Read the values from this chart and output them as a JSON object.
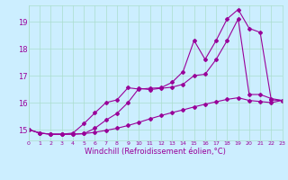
{
  "xlabel": "Windchill (Refroidissement éolien,°C)",
  "bg_color": "#cceeff",
  "grid_color": "#aaddcc",
  "line_color": "#990099",
  "ylim": [
    14.6,
    19.6
  ],
  "xlim": [
    0,
    23
  ],
  "yticks": [
    15,
    16,
    17,
    18,
    19
  ],
  "xticks": [
    0,
    1,
    2,
    3,
    4,
    5,
    6,
    7,
    8,
    9,
    10,
    11,
    12,
    13,
    14,
    15,
    16,
    17,
    18,
    19,
    20,
    21,
    22,
    23
  ],
  "line1_x": [
    0,
    1,
    2,
    3,
    4,
    5,
    6,
    7,
    8,
    9,
    10,
    11,
    12,
    13,
    14,
    15,
    16,
    17,
    18,
    19,
    20,
    21,
    22,
    23
  ],
  "line1_y": [
    15.0,
    14.87,
    14.83,
    14.83,
    14.83,
    14.85,
    14.9,
    14.97,
    15.05,
    15.15,
    15.27,
    15.4,
    15.52,
    15.63,
    15.73,
    15.84,
    15.94,
    16.03,
    16.12,
    16.18,
    16.08,
    16.04,
    16.0,
    16.08
  ],
  "line2_x": [
    0,
    1,
    2,
    3,
    4,
    5,
    6,
    7,
    8,
    9,
    10,
    11,
    12,
    13,
    14,
    15,
    16,
    17,
    18,
    19,
    20,
    21,
    22,
    23
  ],
  "line2_y": [
    15.0,
    14.87,
    14.83,
    14.83,
    14.83,
    14.85,
    15.05,
    15.35,
    15.6,
    16.0,
    16.53,
    16.48,
    16.53,
    16.57,
    16.68,
    17.0,
    17.05,
    17.6,
    18.3,
    19.1,
    16.3,
    16.3,
    16.15,
    16.08
  ],
  "line3_x": [
    0,
    1,
    2,
    3,
    4,
    5,
    6,
    7,
    8,
    9,
    10,
    11,
    12,
    13,
    14,
    15,
    16,
    17,
    18,
    19,
    20,
    21,
    22,
    23
  ],
  "line3_y": [
    15.0,
    14.87,
    14.83,
    14.83,
    14.87,
    15.22,
    15.62,
    16.0,
    16.1,
    16.55,
    16.5,
    16.53,
    16.55,
    16.75,
    17.15,
    18.3,
    17.6,
    18.3,
    19.1,
    19.45,
    18.75,
    18.6,
    16.1,
    16.08
  ],
  "xlabel_fontsize": 6,
  "ytick_fontsize": 6,
  "xtick_fontsize": 4.5,
  "linewidth": 0.8,
  "markersize": 2
}
